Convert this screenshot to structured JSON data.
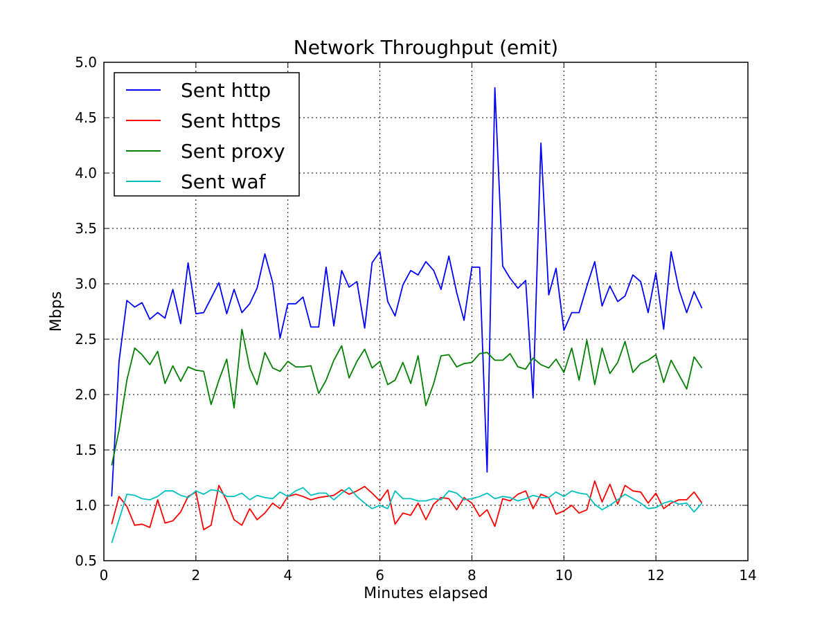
{
  "chart_data": {
    "type": "line",
    "title": "Network Throughput (emit)",
    "xlabel": "Minutes elapsed",
    "ylabel": "Mbps",
    "xlim": [
      0,
      14
    ],
    "ylim": [
      0.5,
      5.0
    ],
    "xticks": [
      0,
      2,
      4,
      6,
      8,
      10,
      12,
      14
    ],
    "xtick_labels": [
      "0",
      "2",
      "4",
      "6",
      "8",
      "10",
      "12",
      "14"
    ],
    "yticks": [
      0.5,
      1.0,
      1.5,
      2.0,
      2.5,
      3.0,
      3.5,
      4.0,
      4.5,
      5.0
    ],
    "ytick_labels": [
      "0.5",
      "1.0",
      "1.5",
      "2.0",
      "2.5",
      "3.0",
      "3.5",
      "4.0",
      "4.5",
      "5.0"
    ],
    "grid": true,
    "legend_position": "top-left",
    "x": [
      0.17,
      0.33,
      0.5,
      0.67,
      0.83,
      1.0,
      1.17,
      1.33,
      1.5,
      1.67,
      1.83,
      2.0,
      2.17,
      2.33,
      2.5,
      2.67,
      2.83,
      3.0,
      3.17,
      3.33,
      3.5,
      3.67,
      3.83,
      4.0,
      4.17,
      4.33,
      4.5,
      4.67,
      4.83,
      5.0,
      5.17,
      5.33,
      5.5,
      5.67,
      5.83,
      6.0,
      6.17,
      6.33,
      6.5,
      6.67,
      6.83,
      7.0,
      7.17,
      7.33,
      7.5,
      7.67,
      7.83,
      8.0,
      8.17,
      8.33,
      8.5,
      8.67,
      8.83,
      9.0,
      9.17,
      9.33,
      9.5,
      9.67,
      9.83,
      10.0,
      10.17,
      10.33,
      10.5,
      10.67,
      10.83,
      11.0,
      11.17,
      11.33,
      11.5,
      11.67,
      11.83,
      12.0,
      12.17,
      12.33,
      12.5,
      12.67,
      12.83,
      13.0
    ],
    "series": [
      {
        "name": "Sent http",
        "color": "#0000ff",
        "values": [
          1.08,
          2.3,
          2.85,
          2.79,
          2.83,
          2.68,
          2.74,
          2.69,
          2.95,
          2.64,
          3.19,
          2.73,
          2.74,
          2.87,
          3.01,
          2.73,
          2.95,
          2.74,
          2.82,
          2.96,
          3.27,
          3.01,
          2.51,
          2.82,
          2.82,
          2.88,
          2.61,
          2.61,
          3.15,
          2.62,
          3.12,
          2.97,
          3.02,
          2.6,
          3.19,
          3.29,
          2.84,
          2.71,
          2.99,
          3.12,
          3.08,
          3.2,
          3.12,
          2.95,
          3.25,
          2.92,
          2.67,
          3.15,
          3.15,
          1.3,
          4.77,
          3.16,
          3.05,
          2.96,
          3.03,
          1.97,
          4.27,
          2.9,
          3.14,
          2.58,
          2.74,
          2.74,
          2.98,
          3.2,
          2.8,
          2.98,
          2.84,
          2.89,
          3.08,
          3.02,
          2.74,
          3.1,
          2.59,
          3.29,
          2.95,
          2.74,
          2.93,
          2.78
        ]
      },
      {
        "name": "Sent https",
        "color": "#ff0000",
        "values": [
          0.83,
          1.08,
          0.99,
          0.82,
          0.83,
          0.8,
          1.05,
          0.84,
          0.86,
          0.94,
          1.08,
          1.12,
          0.78,
          0.82,
          1.18,
          1.04,
          0.87,
          0.82,
          0.97,
          0.87,
          0.93,
          1.02,
          0.97,
          1.08,
          1.1,
          1.08,
          1.05,
          1.07,
          1.08,
          1.09,
          1.14,
          1.1,
          1.13,
          1.17,
          1.11,
          1.04,
          1.14,
          0.83,
          0.93,
          0.91,
          1.02,
          0.87,
          1.01,
          1.07,
          1.06,
          0.96,
          1.07,
          1.02,
          0.9,
          0.96,
          0.81,
          1.06,
          1.04,
          1.1,
          1.13,
          0.97,
          1.1,
          1.07,
          0.92,
          0.95,
          1.0,
          0.93,
          0.96,
          1.22,
          1.03,
          1.19,
          1.01,
          1.18,
          1.13,
          1.12,
          1.02,
          1.11,
          0.97,
          1.02,
          1.05,
          1.05,
          1.12,
          1.02
        ]
      },
      {
        "name": "Sent proxy",
        "color": "#008000",
        "values": [
          1.36,
          1.68,
          2.13,
          2.42,
          2.36,
          2.27,
          2.39,
          2.1,
          2.26,
          2.12,
          2.25,
          2.22,
          2.21,
          1.91,
          2.13,
          2.32,
          1.88,
          2.59,
          2.24,
          2.09,
          2.38,
          2.24,
          2.21,
          2.3,
          2.25,
          2.25,
          2.26,
          2.01,
          2.13,
          2.31,
          2.44,
          2.15,
          2.3,
          2.41,
          2.24,
          2.3,
          2.09,
          2.13,
          2.29,
          2.1,
          2.35,
          1.9,
          2.1,
          2.35,
          2.36,
          2.25,
          2.28,
          2.29,
          2.37,
          2.38,
          2.31,
          2.31,
          2.37,
          2.25,
          2.23,
          2.33,
          2.27,
          2.24,
          2.32,
          2.2,
          2.42,
          2.13,
          2.49,
          2.09,
          2.42,
          2.19,
          2.29,
          2.48,
          2.2,
          2.28,
          2.31,
          2.36,
          2.11,
          2.31,
          2.18,
          2.05,
          2.34,
          2.24
        ]
      },
      {
        "name": "Sent waf",
        "color": "#00bfbf",
        "values": [
          0.66,
          0.87,
          1.1,
          1.09,
          1.06,
          1.05,
          1.08,
          1.13,
          1.13,
          1.09,
          1.07,
          1.13,
          1.1,
          1.14,
          1.13,
          1.08,
          1.08,
          1.11,
          1.05,
          1.09,
          1.07,
          1.06,
          1.12,
          1.08,
          1.13,
          1.16,
          1.09,
          1.11,
          1.11,
          1.05,
          1.11,
          1.16,
          1.08,
          1.02,
          0.97,
          1.0,
          0.97,
          1.13,
          1.06,
          1.06,
          1.04,
          1.04,
          1.06,
          1.05,
          1.13,
          1.11,
          1.05,
          1.06,
          1.08,
          1.11,
          1.06,
          1.08,
          1.07,
          1.04,
          1.06,
          1.09,
          1.07,
          1.07,
          1.12,
          1.08,
          1.13,
          1.11,
          1.1,
          1.01,
          0.96,
          1.0,
          1.05,
          1.1,
          1.06,
          1.02,
          0.97,
          0.98,
          1.02,
          1.04,
          1.01,
          1.02,
          0.94,
          1.02
        ]
      }
    ]
  }
}
